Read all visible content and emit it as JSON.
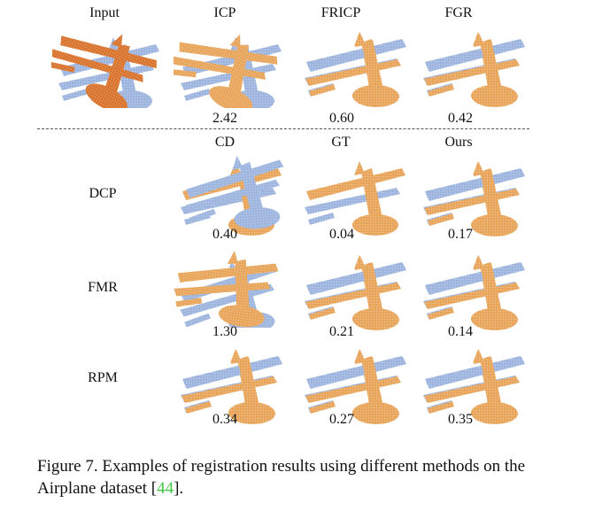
{
  "top_row": {
    "headers": [
      "Input",
      "ICP",
      "FRICP",
      "FGR"
    ],
    "values": [
      "",
      "2.42",
      "0.60",
      "0.42"
    ]
  },
  "bottom": {
    "headers": [
      "CD",
      "GT",
      "Ours"
    ],
    "rows": [
      {
        "label": "DCP",
        "values": [
          "0.40",
          "0.04",
          "0.17"
        ]
      },
      {
        "label": "FMR",
        "values": [
          "1.30",
          "0.21",
          "0.14"
        ]
      },
      {
        "label": "RPM",
        "values": [
          "0.34",
          "0.27",
          "0.35"
        ]
      }
    ]
  },
  "colors": {
    "source": "#d9732c",
    "source_light": "#e8a55a",
    "target": "#9db5de"
  },
  "caption": {
    "text_before": "Figure 7. Examples of registration results using different methods on the Airplane dataset [",
    "cite": "44",
    "text_after": "]."
  }
}
